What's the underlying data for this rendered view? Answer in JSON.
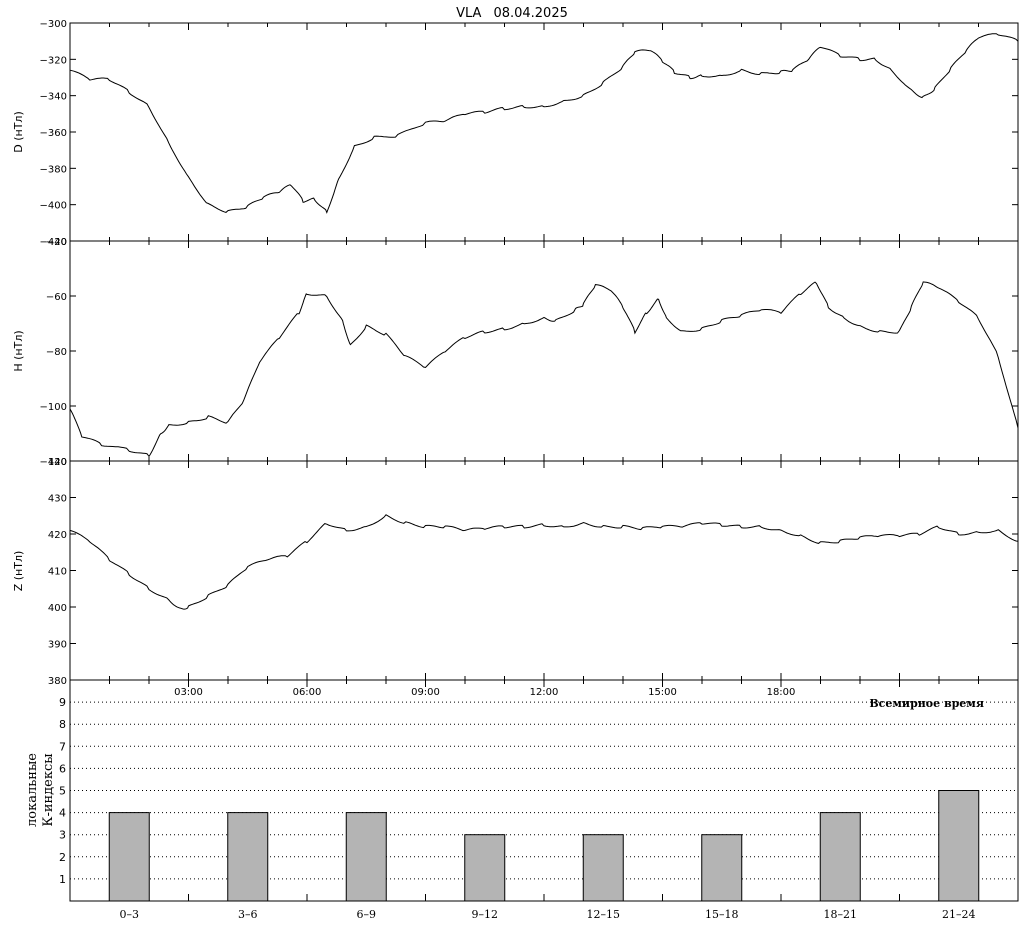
{
  "header": {
    "station": "VLA",
    "date": "08.04.2025"
  },
  "xaxis": {
    "time_ticks": [
      "03:00",
      "06:00",
      "09:00",
      "12:00",
      "15:00",
      "18:00"
    ],
    "time_label": "Всемирное время"
  },
  "chart_data": [
    {
      "type": "line",
      "ylabel": "D (нТл)",
      "ylim": [
        -420,
        -300
      ],
      "yticks": [
        -300,
        -320,
        -340,
        -360,
        -380,
        -400,
        -420
      ],
      "x_hours": [
        0,
        0.5,
        1,
        1.5,
        2,
        2.5,
        3,
        3.5,
        4,
        4.5,
        4.9,
        5.3,
        5.6,
        5.9,
        6.2,
        6.5,
        6.8,
        7.2,
        7.7,
        8.3,
        9,
        9.5,
        10,
        10.5,
        11,
        11.5,
        12,
        12.5,
        13,
        13.5,
        14,
        14.3,
        14.7,
        15,
        15.3,
        15.7,
        16,
        16.5,
        17,
        17.5,
        18,
        18.3,
        18.7,
        19,
        19.5,
        20,
        20.4,
        20.8,
        21.3,
        21.6,
        21.9,
        22.3,
        22.7,
        23,
        23.5,
        24
      ],
      "values": [
        -326,
        -331,
        -331,
        -338,
        -346,
        -366,
        -385,
        -400,
        -404,
        -401,
        -396,
        -393,
        -389,
        -398,
        -397,
        -404,
        -386,
        -368,
        -363,
        -362,
        -355,
        -354,
        -350,
        -349,
        -347,
        -346,
        -346,
        -343,
        -340,
        -333,
        -324,
        -316,
        -315,
        -321,
        -327,
        -330,
        -329,
        -329,
        -326,
        -328,
        -327,
        -326,
        -320,
        -313,
        -318,
        -320,
        -320,
        -326,
        -337,
        -341,
        -336,
        -325,
        -315,
        -308,
        -306,
        -310
      ]
    },
    {
      "type": "line",
      "ylabel": "H (нТл)",
      "ylim": [
        -120,
        -40
      ],
      "yticks": [
        -40,
        -60,
        -80,
        -100,
        -120
      ],
      "x_hours": [
        0,
        0.3,
        0.8,
        1.5,
        2,
        2.3,
        2.5,
        3,
        3.5,
        4,
        4.4,
        4.8,
        5.3,
        5.8,
        6,
        6.5,
        6.9,
        7.1,
        7.5,
        8,
        8.5,
        9,
        9.5,
        10,
        10.5,
        11,
        11.5,
        12,
        12.3,
        12.8,
        13,
        13.3,
        13.7,
        14,
        14.3,
        14.6,
        14.9,
        15.1,
        15.5,
        16,
        16.5,
        17,
        17.5,
        18,
        18.5,
        18.9,
        19.2,
        19.6,
        20,
        20.5,
        21,
        21.3,
        21.6,
        22,
        22.5,
        23,
        23.5,
        24
      ],
      "values": [
        -101,
        -111,
        -114,
        -116,
        -118,
        -110,
        -107,
        -106,
        -104,
        -106,
        -98,
        -84,
        -75,
        -66,
        -59,
        -60,
        -69,
        -78,
        -71,
        -74,
        -82,
        -86,
        -80,
        -75,
        -73,
        -72,
        -70,
        -68,
        -69,
        -65,
        -63,
        -56,
        -58,
        -64,
        -73,
        -66,
        -61,
        -68,
        -73,
        -72,
        -69,
        -67,
        -65,
        -66,
        -59,
        -55,
        -64,
        -68,
        -71,
        -73,
        -73,
        -64,
        -55,
        -57,
        -62,
        -68,
        -82,
        -108
      ]
    },
    {
      "type": "line",
      "ylabel": "Z (нТл)",
      "ylim": [
        380,
        440
      ],
      "yticks": [
        440,
        430,
        420,
        410,
        400,
        390,
        380
      ],
      "x_hours": [
        0,
        0.5,
        1,
        1.5,
        2,
        2.5,
        2.8,
        3,
        3.5,
        4,
        4.5,
        5,
        5.5,
        6,
        6.5,
        7,
        7.5,
        8,
        8.5,
        9,
        9.5,
        10,
        10.5,
        11,
        11.5,
        12,
        12.5,
        13,
        13.5,
        14,
        14.5,
        15,
        15.5,
        16,
        16.5,
        17,
        17.5,
        18,
        18.5,
        19,
        19.5,
        20,
        20.5,
        21,
        21.5,
        22,
        22.5,
        23,
        23.5,
        24
      ],
      "values": [
        421,
        418,
        413,
        409,
        405,
        402,
        399.5,
        400,
        403,
        406,
        411,
        413,
        414,
        418,
        423,
        421,
        422,
        425,
        423,
        422,
        422,
        421,
        421.5,
        422,
        422,
        422.5,
        422,
        423,
        422,
        422,
        421.5,
        422,
        422,
        423,
        422.5,
        422,
        422,
        421,
        419.5,
        417.5,
        418,
        419,
        419.5,
        419.5,
        420,
        422,
        420,
        420.5,
        421,
        418
      ]
    },
    {
      "type": "bar",
      "ylabel": "локальные К-индексы",
      "yticks": [
        1,
        2,
        3,
        4,
        5,
        6,
        7,
        8,
        9
      ],
      "categories": [
        "0–3",
        "3–6",
        "6–9",
        "9–12",
        "12–15",
        "15–18",
        "18–21",
        "21–24"
      ],
      "values": [
        4,
        4,
        4,
        3,
        3,
        3,
        4,
        5
      ],
      "bar_color": "#b4b4b4"
    }
  ]
}
